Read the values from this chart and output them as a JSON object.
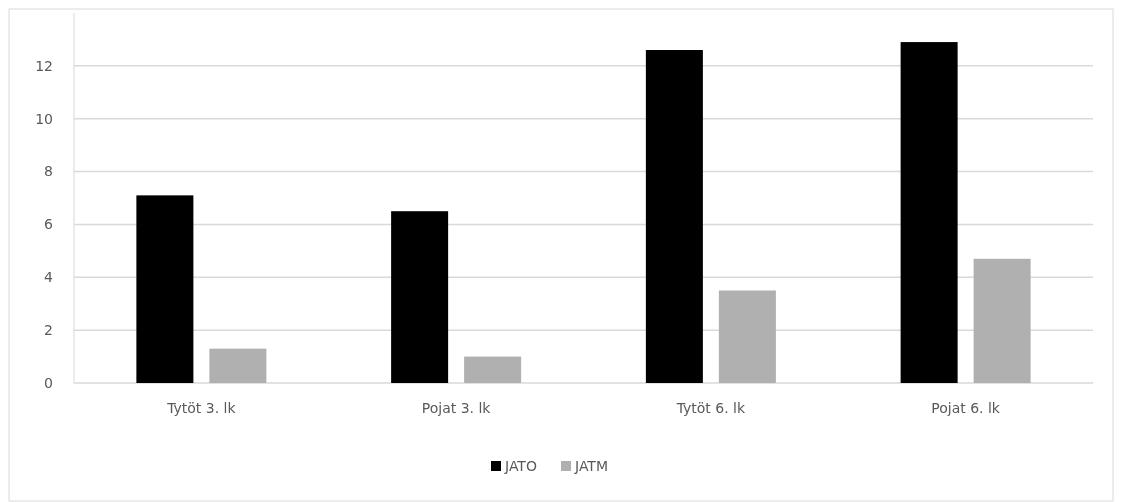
{
  "chart_data": {
    "type": "bar",
    "categories": [
      "Tytöt 3. lk",
      "Pojat 3. lk",
      "Tytöt 6. lk",
      "Pojat 6. lk"
    ],
    "series": [
      {
        "name": "JATO",
        "color": "#000000",
        "values": [
          7.1,
          6.5,
          12.6,
          12.9
        ]
      },
      {
        "name": "JATM",
        "color": "#b0b0b0",
        "values": [
          1.3,
          1.0,
          3.5,
          4.7
        ]
      }
    ],
    "ylim": [
      0,
      14
    ],
    "yticks": [
      0,
      2,
      4,
      6,
      8,
      10,
      12
    ],
    "grid": "y",
    "legend": "bottom"
  }
}
